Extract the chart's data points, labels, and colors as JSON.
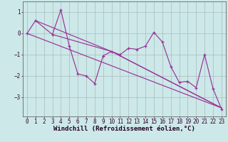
{
  "x_data": [
    0,
    1,
    2,
    3,
    4,
    5,
    6,
    7,
    8,
    9,
    10,
    11,
    12,
    13,
    14,
    15,
    16,
    17,
    18,
    19,
    20,
    21,
    22,
    23
  ],
  "y_main": [
    0.0,
    0.6,
    null,
    -0.05,
    1.1,
    -0.6,
    -1.9,
    -2.0,
    -2.35,
    -1.05,
    -0.85,
    -1.0,
    -0.7,
    -0.75,
    -0.6,
    0.05,
    -0.4,
    -1.55,
    -2.3,
    -2.25,
    -2.55,
    -1.0,
    -2.6,
    -3.55
  ],
  "trend_line1_x": [
    0,
    23
  ],
  "trend_line1_y": [
    0.0,
    -3.5
  ],
  "trend_line2_x": [
    3,
    10,
    23
  ],
  "trend_line2_y": [
    -0.05,
    -0.85,
    -3.5
  ],
  "trend_line3_x": [
    1,
    10,
    23
  ],
  "trend_line3_y": [
    0.6,
    -0.85,
    -3.5
  ],
  "bg_color": "#cce8e8",
  "line_color": "#993399",
  "grid_color": "#aabbbb",
  "xlabel": "Windchill (Refroidissement éolien,°C)",
  "xlabel_fontsize": 6.5,
  "tick_fontsize": 5.5,
  "ylim": [
    -3.9,
    1.5
  ],
  "xlim": [
    -0.5,
    23.5
  ],
  "yticks": [
    -3,
    -2,
    -1,
    0,
    1
  ],
  "xticks": [
    0,
    1,
    2,
    3,
    4,
    5,
    6,
    7,
    8,
    9,
    10,
    11,
    12,
    13,
    14,
    15,
    16,
    17,
    18,
    19,
    20,
    21,
    22,
    23
  ]
}
